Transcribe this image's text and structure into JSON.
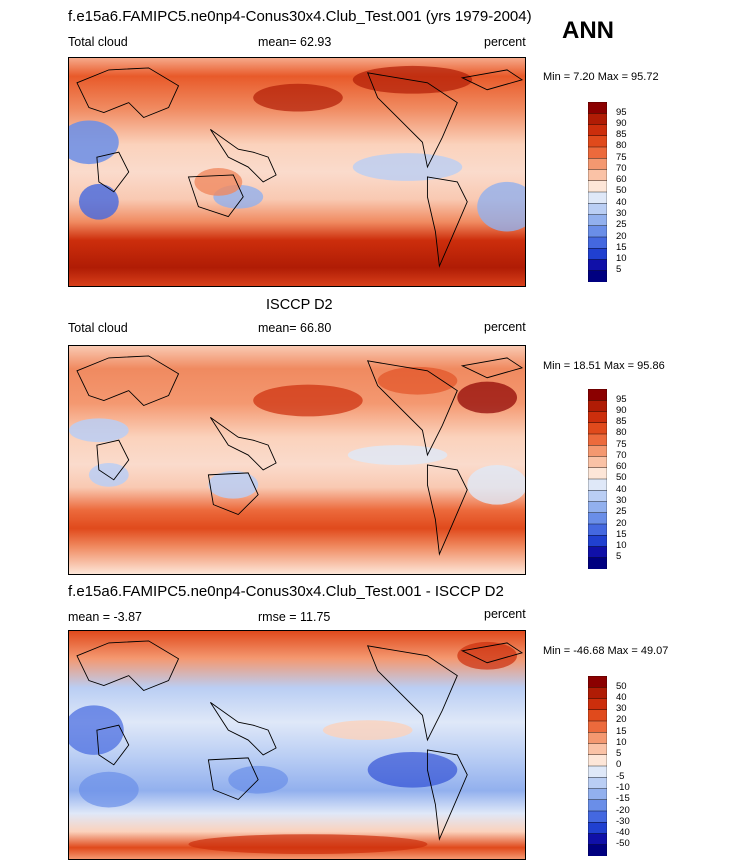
{
  "panel1": {
    "title": "f.e15a6.FAMIPC5.ne0np4-Conus30x4.Club_Test.001 (yrs 1979-2004)",
    "left_label": "Total cloud",
    "center_label": "mean=  62.93",
    "right_label": "percent",
    "minmax": "Min =   7.20 Max =  95.72",
    "levels": [
      "95",
      "90",
      "85",
      "80",
      "75",
      "70",
      "60",
      "50",
      "40",
      "30",
      "25",
      "20",
      "15",
      "10",
      "5"
    ]
  },
  "season": "ANN",
  "panel2": {
    "title": "ISCCP D2",
    "left_label": "Total cloud",
    "center_label": "mean=  66.80",
    "right_label": "percent",
    "minmax": "Min =  18.51 Max =  95.86",
    "levels": [
      "95",
      "90",
      "85",
      "80",
      "75",
      "70",
      "60",
      "50",
      "40",
      "30",
      "25",
      "20",
      "15",
      "10",
      "5"
    ]
  },
  "panel3": {
    "title": "f.e15a6.FAMIPC5.ne0np4-Conus30x4.Club_Test.001 - ISCCP D2",
    "left_label": "mean =  -3.87",
    "center_label": "rmse =  11.75",
    "right_label": "percent",
    "minmax": "Min = -46.68 Max =  49.07",
    "levels": [
      "50",
      "40",
      "30",
      "20",
      "15",
      "10",
      "5",
      "0",
      "-5",
      "-10",
      "-15",
      "-20",
      "-30",
      "-40",
      "-50"
    ]
  },
  "colors": {
    "colorbar": [
      "#8b0000",
      "#b01c05",
      "#cc2e0c",
      "#e04a1c",
      "#ec6a3c",
      "#f49870",
      "#fac2a6",
      "#fde6d8",
      "#dfe8f8",
      "#bacef4",
      "#92b0ee",
      "#6a8ee8",
      "#4468e0",
      "#2040d0",
      "#1010a8",
      "#000080"
    ]
  },
  "chart_data": [
    {
      "type": "heatmap",
      "title": "f.e15a6.FAMIPC5.ne0np4-Conus30x4.Club_Test.001 (yrs 1979-2004)",
      "variable": "Total cloud",
      "units": "percent",
      "mean": 62.93,
      "min": 7.2,
      "max": 95.72,
      "contour_levels": [
        5,
        10,
        15,
        20,
        25,
        30,
        40,
        50,
        60,
        70,
        75,
        80,
        85,
        90,
        95
      ]
    },
    {
      "type": "heatmap",
      "title": "ISCCP D2",
      "variable": "Total cloud",
      "units": "percent",
      "mean": 66.8,
      "min": 18.51,
      "max": 95.86,
      "contour_levels": [
        5,
        10,
        15,
        20,
        25,
        30,
        40,
        50,
        60,
        70,
        75,
        80,
        85,
        90,
        95
      ]
    },
    {
      "type": "heatmap",
      "title": "f.e15a6.FAMIPC5.ne0np4-Conus30x4.Club_Test.001 - ISCCP D2",
      "units": "percent",
      "mean": -3.87,
      "rmse": 11.75,
      "min": -46.68,
      "max": 49.07,
      "contour_levels": [
        -50,
        -40,
        -30,
        -20,
        -15,
        -10,
        -5,
        0,
        5,
        10,
        15,
        20,
        30,
        40,
        50
      ]
    }
  ]
}
